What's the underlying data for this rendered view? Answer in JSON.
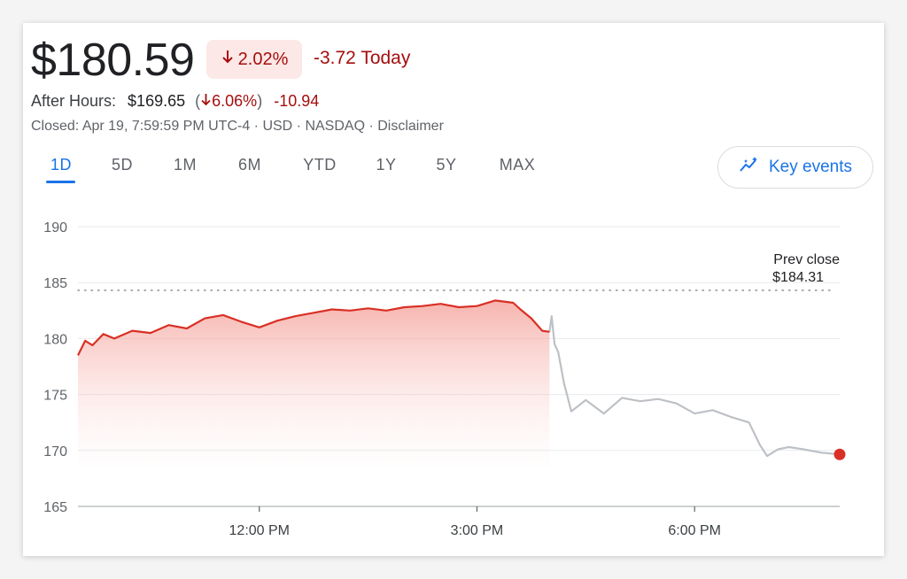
{
  "quote": {
    "price": "$180.59",
    "change_pct": "2.02%",
    "change_today": "-3.72 Today",
    "after_hours_label": "After Hours:",
    "after_hours_price": "$169.65",
    "after_hours_pct": "6.06%",
    "after_hours_change": "-10.94",
    "meta": "Closed: Apr 19, 7:59:59 PM UTC-4 · USD · NASDAQ · Disclaimer"
  },
  "tabs": [
    "1D",
    "5D",
    "1M",
    "6M",
    "YTD",
    "1Y",
    "5Y",
    "MAX"
  ],
  "active_tab": "1D",
  "key_events_label": "Key events",
  "colors": {
    "negative": "#d93025",
    "negative_text": "#a50e0e",
    "accent": "#1a73e8",
    "after_hours_line": "#bdc1c6"
  },
  "chart_data": {
    "type": "line",
    "x_axis": {
      "tick_labels": [
        "12:00 PM",
        "3:00 PM",
        "6:00 PM"
      ],
      "tick_hours": [
        12,
        15,
        18
      ],
      "range_hours": [
        9.5,
        20
      ]
    },
    "y_axis": {
      "ticks": [
        165,
        170,
        175,
        180,
        185,
        190
      ],
      "range": [
        165,
        190
      ]
    },
    "grid": true,
    "reference_line": {
      "label": "Prev close",
      "value_label": "$184.31",
      "value": 184.31
    },
    "series": [
      {
        "session": "regular",
        "fill": "area",
        "x_hours": [
          9.5,
          9.6,
          9.7,
          9.85,
          10.0,
          10.25,
          10.5,
          10.75,
          11.0,
          11.25,
          11.5,
          11.75,
          12.0,
          12.25,
          12.5,
          12.75,
          13.0,
          13.25,
          13.5,
          13.75,
          14.0,
          14.25,
          14.5,
          14.75,
          15.0,
          15.25,
          15.5,
          15.6,
          15.75,
          15.9,
          16.0
        ],
        "y": [
          178.5,
          179.8,
          179.4,
          180.4,
          180.0,
          180.7,
          180.5,
          181.2,
          180.9,
          181.8,
          182.1,
          181.5,
          181.0,
          181.6,
          182.0,
          182.3,
          182.6,
          182.5,
          182.7,
          182.5,
          182.8,
          182.9,
          183.1,
          182.8,
          182.9,
          183.4,
          183.2,
          182.6,
          181.8,
          180.7,
          180.6
        ]
      },
      {
        "session": "after-hours",
        "x_hours": [
          16.0,
          16.03,
          16.07,
          16.12,
          16.2,
          16.3,
          16.5,
          16.75,
          17.0,
          17.25,
          17.5,
          17.75,
          18.0,
          18.25,
          18.5,
          18.75,
          18.9,
          19.0,
          19.15,
          19.3,
          19.5,
          19.75,
          20.0
        ],
        "y": [
          180.6,
          182.0,
          179.5,
          178.8,
          176.0,
          173.5,
          174.5,
          173.3,
          174.7,
          174.4,
          174.6,
          174.2,
          173.3,
          173.6,
          173.0,
          172.5,
          170.5,
          169.5,
          170.1,
          170.3,
          170.1,
          169.8,
          169.65
        ]
      }
    ]
  }
}
